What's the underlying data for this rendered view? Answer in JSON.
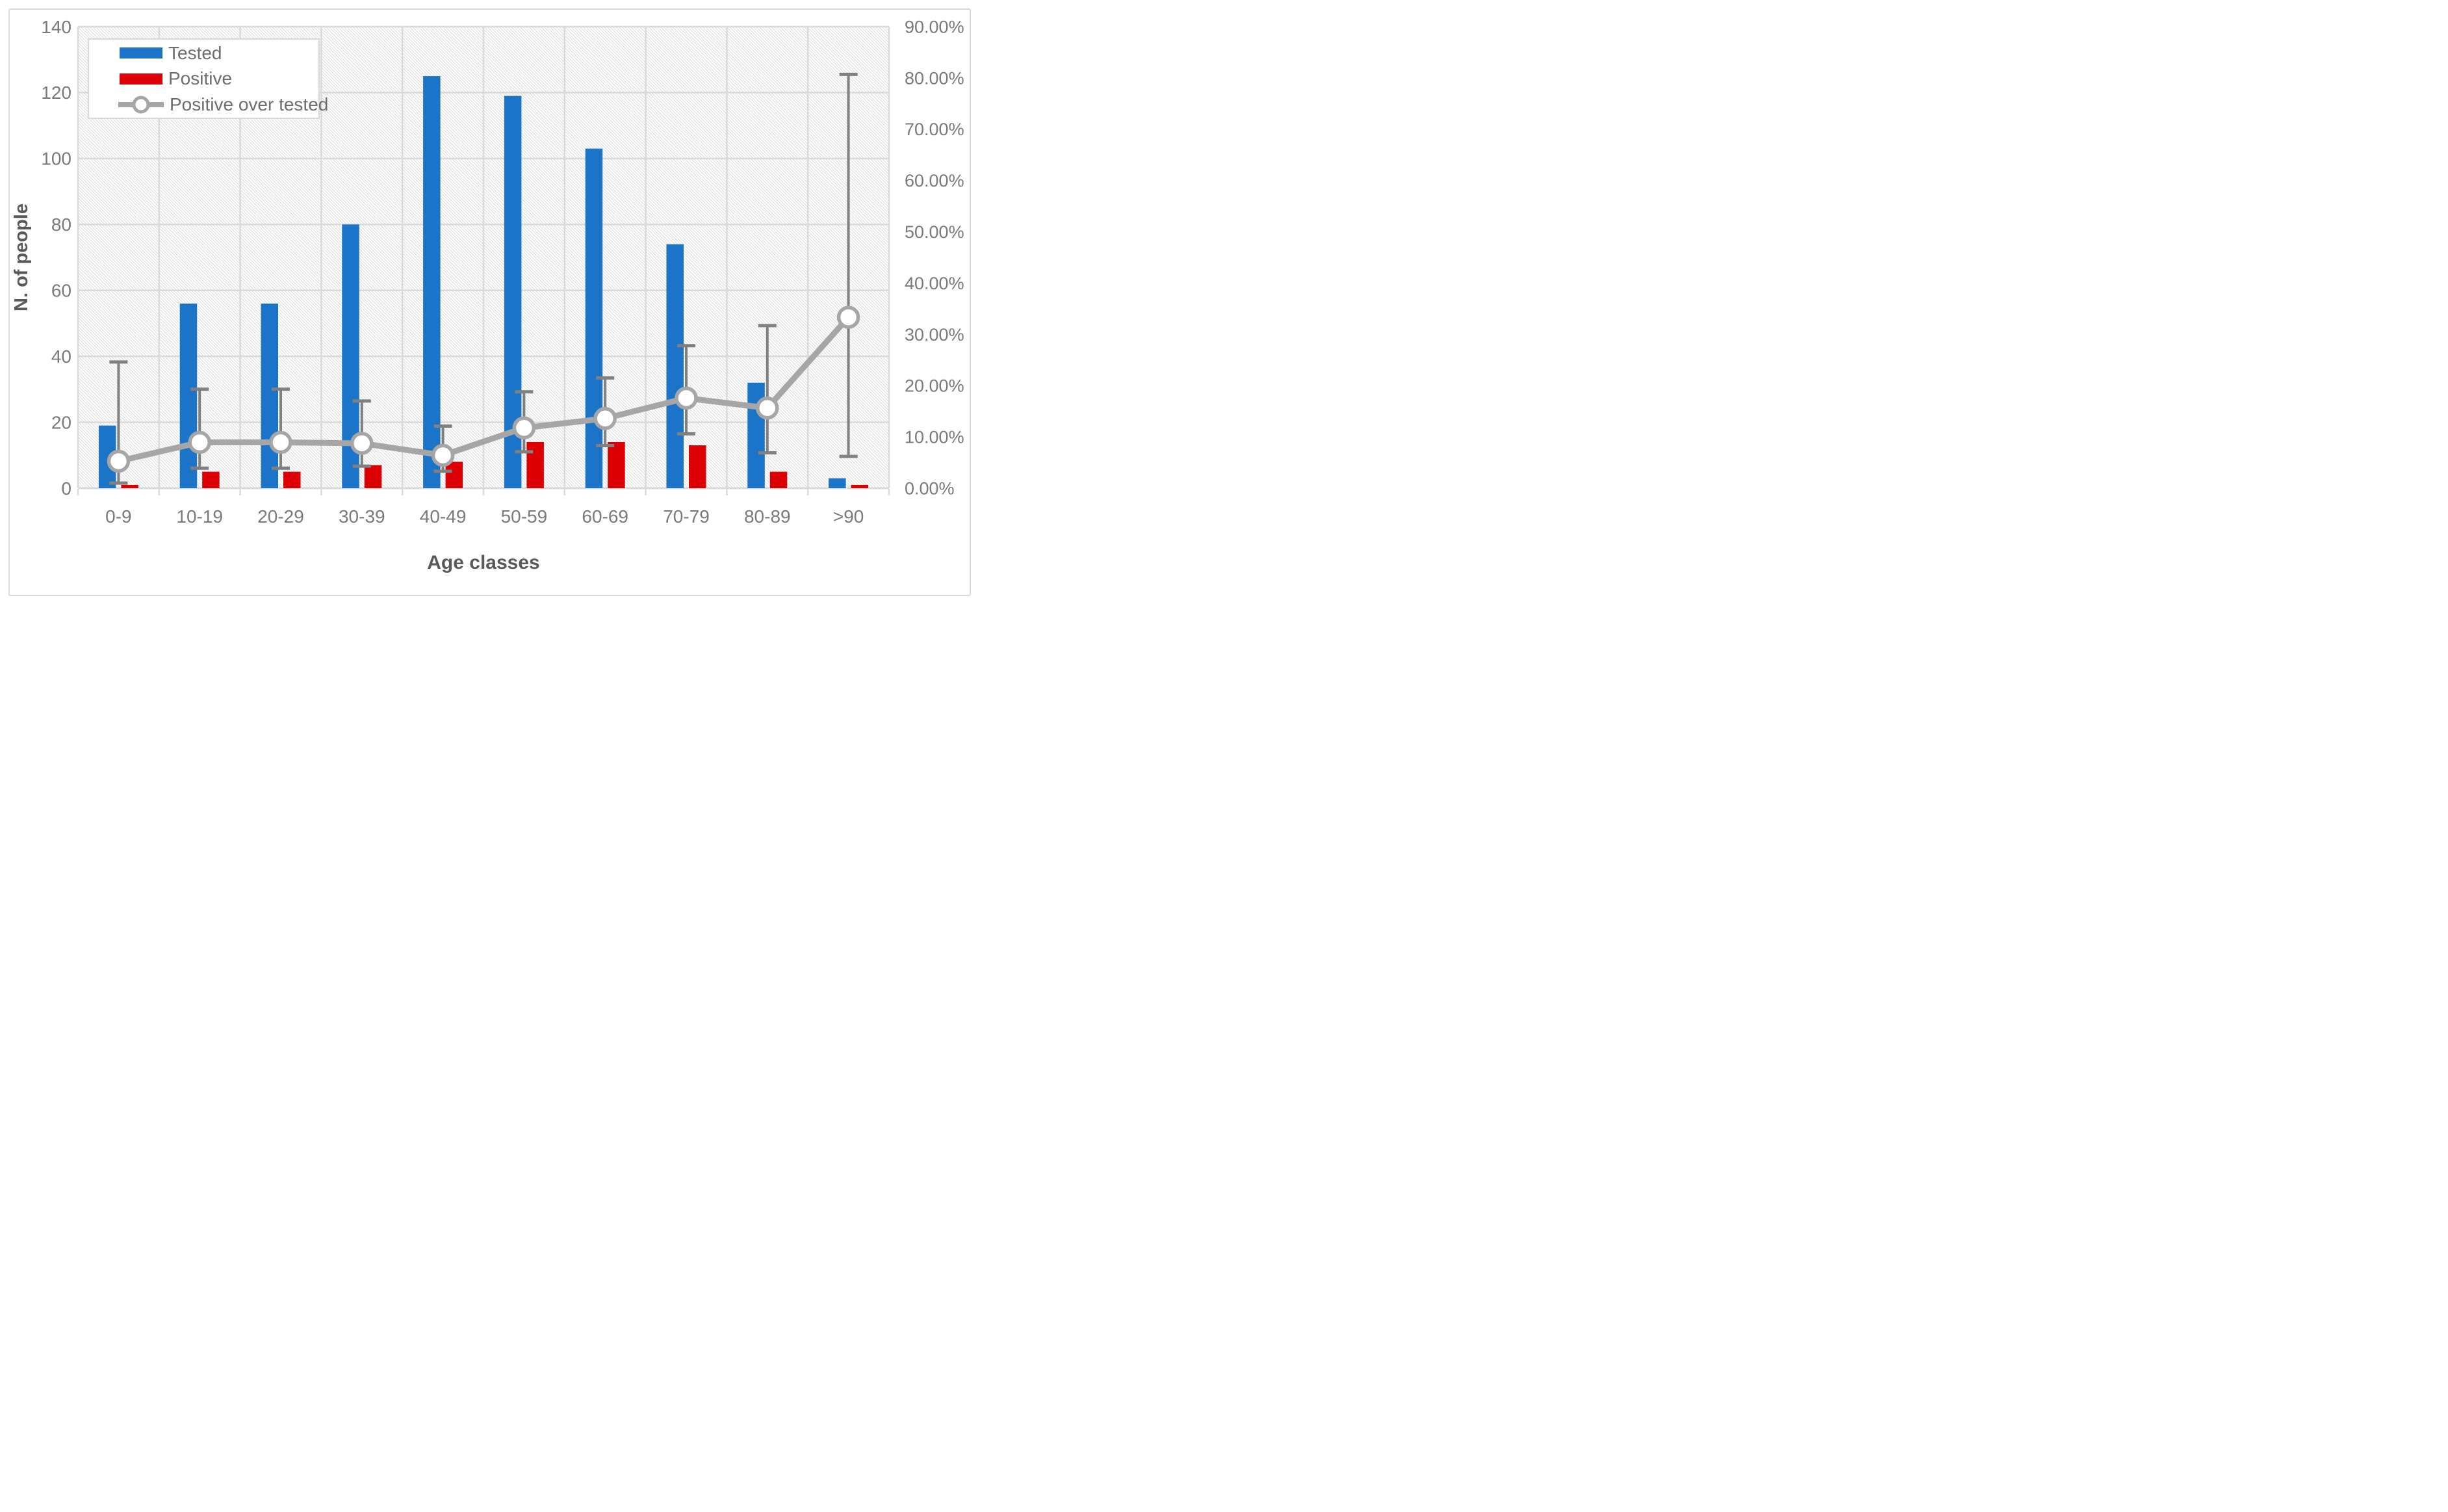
{
  "chart_data": {
    "type": "bar+line",
    "categories": [
      "0-9",
      "10-19",
      "20-29",
      "30-39",
      "40-49",
      "50-59",
      "60-69",
      "70-79",
      "80-89",
      ">90"
    ],
    "x_axis": {
      "title": "Age classes"
    },
    "left_axis": {
      "title": "N. of people",
      "min": 0,
      "max": 140,
      "step": 20,
      "tick_labels": [
        "0",
        "20",
        "40",
        "60",
        "80",
        "100",
        "120",
        "140"
      ]
    },
    "right_axis": {
      "min": 0,
      "max": 90,
      "step": 10,
      "tick_labels": [
        "0.00%",
        "10.00%",
        "20.00%",
        "30.00%",
        "40.00%",
        "50.00%",
        "60.00%",
        "70.00%",
        "80.00%",
        "90.00%"
      ]
    },
    "grid": {
      "horizontal": true,
      "vertical": true
    },
    "series": [
      {
        "name": "Tested",
        "type": "bar",
        "axis": "left",
        "color": "#1B74C8",
        "values": [
          19,
          56,
          56,
          80,
          125,
          119,
          103,
          74,
          32,
          3
        ]
      },
      {
        "name": "Positive",
        "type": "bar",
        "axis": "left",
        "color": "#DC0005",
        "values": [
          1,
          5,
          5,
          7,
          8,
          14,
          14,
          13,
          5,
          1
        ]
      },
      {
        "name": "Positive over tested",
        "type": "line",
        "axis": "right",
        "color": "#A6A6A6",
        "marker": "circle",
        "marker_fill": "#FFFFFF",
        "error_bar_color": "#808080",
        "values_pct": [
          5.26,
          8.93,
          8.93,
          8.75,
          6.4,
          11.76,
          13.59,
          17.57,
          15.63,
          33.33
        ],
        "error_low_pct": [
          1.0,
          3.9,
          3.9,
          4.3,
          3.3,
          7.1,
          8.3,
          10.6,
          6.9,
          6.2
        ],
        "error_high_pct": [
          24.6,
          19.3,
          19.3,
          17.0,
          12.1,
          18.8,
          21.5,
          27.8,
          31.7,
          80.7
        ]
      }
    ],
    "legend_position": "top-left"
  },
  "colors": {
    "background": "#FFFFFF",
    "outer_border": "#D9D9D9",
    "grid": "#DADADA",
    "axis_line": "#D4D4D4",
    "tick_text": "#7A7A7A",
    "title_text": "#595959",
    "hatch": "#E2E2E2"
  }
}
